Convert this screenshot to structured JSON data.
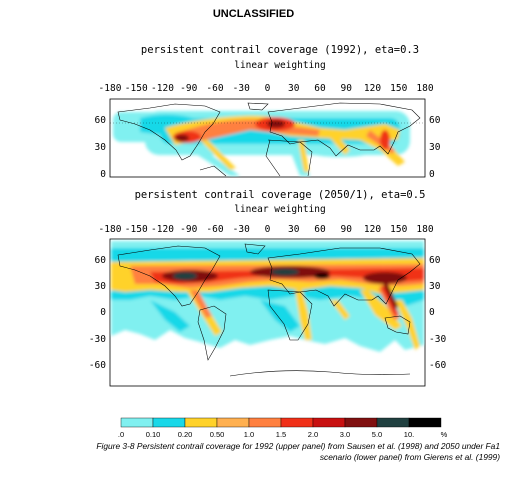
{
  "header": {
    "classification": "UNCLASSIFIED"
  },
  "panel_upper": {
    "title": "persistent contrail coverage (1992), eta=0.3",
    "subtitle": "linear weighting",
    "lon_ticks": [
      "-180",
      "-150",
      "-120",
      "-90",
      "-60",
      "-30",
      "0",
      "30",
      "60",
      "90",
      "120",
      "150",
      "180"
    ],
    "lat_ticks": [
      "60",
      "30",
      "0"
    ]
  },
  "panel_lower": {
    "title": "persistent contrail coverage (2050/1), eta=0.5",
    "subtitle": "linear weighting",
    "lon_ticks": [
      "-180",
      "-150",
      "-120",
      "-90",
      "-60",
      "-30",
      "0",
      "30",
      "60",
      "90",
      "120",
      "150",
      "180"
    ],
    "lat_ticks": [
      "60",
      "30",
      "0",
      "-30",
      "-60"
    ]
  },
  "legend": {
    "labels": [
      ".0",
      "0.10",
      "0.20",
      "0.50",
      "1.0",
      "1.5",
      "2.0",
      "3.0",
      "5.0",
      "10.",
      "%"
    ],
    "colors": [
      "#80f0f0",
      "#19d8e8",
      "#ffd22a",
      "#ffb050",
      "#ff8040",
      "#f03018",
      "#c81010",
      "#801010",
      "#204040",
      "#000000"
    ]
  },
  "caption": {
    "line1": "Figure 3-8 Persistent contrail coverage for 1992 (upper panel) from Sausen et al. (1998) and 2050 under Fa1",
    "line2": "scenario (lower panel) from Gierens et al. (1999)"
  }
}
